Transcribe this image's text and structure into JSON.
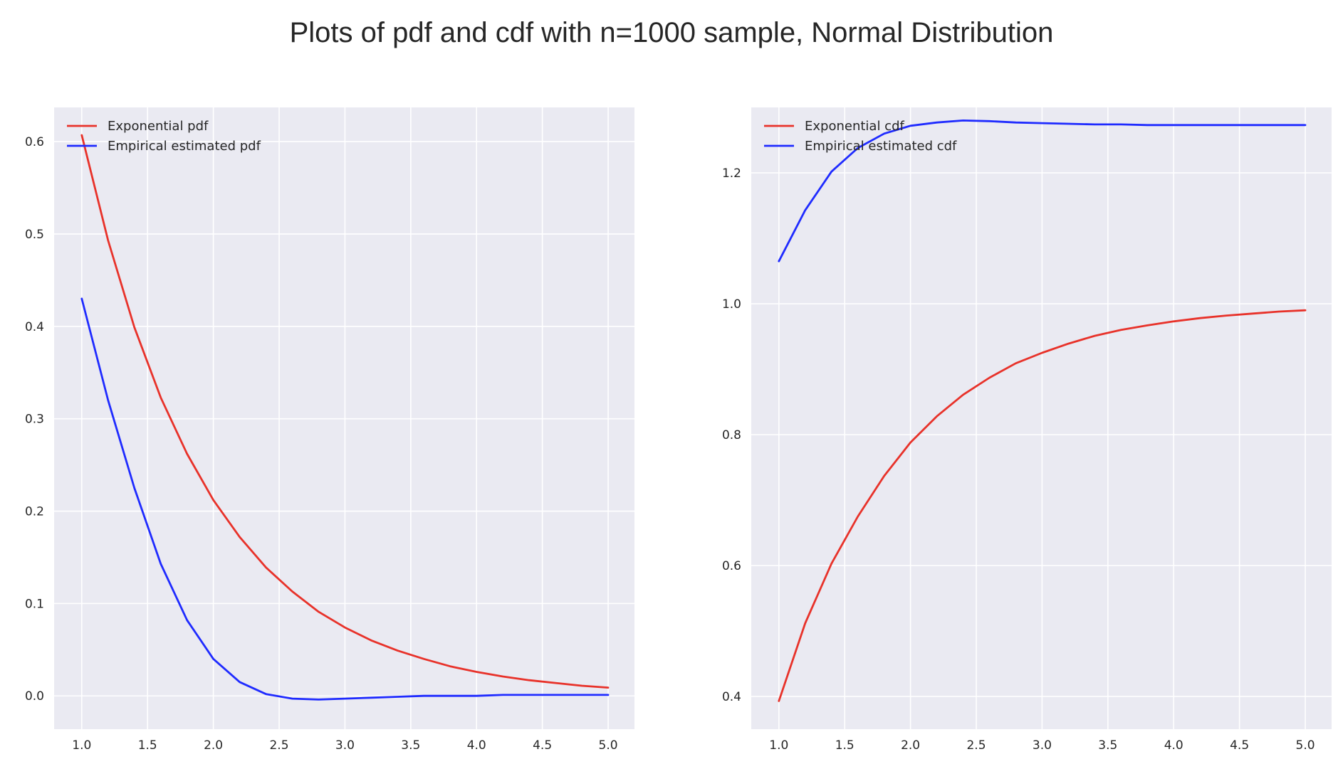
{
  "title": "Plots of pdf and cdf with n=1000 sample, Normal Distribution",
  "colors": {
    "background": "#eaeaf2",
    "grid": "#ffffff",
    "red": "#e8322a",
    "blue": "#1f2bff"
  },
  "chart_data": [
    {
      "type": "line",
      "title": "",
      "xlabel": "",
      "ylabel": "",
      "xlim": [
        0.79,
        5.2
      ],
      "ylim": [
        -0.036,
        0.637
      ],
      "xticks": [
        1.0,
        1.5,
        2.0,
        2.5,
        3.0,
        3.5,
        4.0,
        4.5,
        5.0
      ],
      "xtick_labels": [
        "1.0",
        "1.5",
        "2.0",
        "2.5",
        "3.0",
        "3.5",
        "4.0",
        "4.5",
        "5.0"
      ],
      "yticks": [
        0.0,
        0.1,
        0.2,
        0.3,
        0.4,
        0.5,
        0.6
      ],
      "ytick_labels": [
        "0.0",
        "0.1",
        "0.2",
        "0.3",
        "0.4",
        "0.5",
        "0.6"
      ],
      "grid": true,
      "legend": "upper left",
      "series": [
        {
          "name": "Exponential pdf",
          "color": "#e8322a",
          "x": [
            1.0,
            1.2,
            1.4,
            1.6,
            1.8,
            2.0,
            2.2,
            2.4,
            2.6,
            2.8,
            3.0,
            3.2,
            3.4,
            3.6,
            3.8,
            4.0,
            4.2,
            4.4,
            4.6,
            4.8,
            5.0
          ],
          "y": [
            0.607,
            0.493,
            0.399,
            0.323,
            0.262,
            0.212,
            0.172,
            0.139,
            0.113,
            0.091,
            0.074,
            0.06,
            0.049,
            0.04,
            0.032,
            0.026,
            0.021,
            0.017,
            0.014,
            0.011,
            0.009
          ]
        },
        {
          "name": "Empirical estimated pdf",
          "color": "#1f2bff",
          "x": [
            1.0,
            1.2,
            1.4,
            1.6,
            1.8,
            2.0,
            2.2,
            2.4,
            2.6,
            2.8,
            3.0,
            3.2,
            3.4,
            3.6,
            3.8,
            4.0,
            4.2,
            4.4,
            4.6,
            4.8,
            5.0
          ],
          "y": [
            0.43,
            0.32,
            0.225,
            0.143,
            0.082,
            0.04,
            0.015,
            0.002,
            -0.003,
            -0.004,
            -0.003,
            -0.002,
            -0.001,
            0.0,
            0.0,
            0.0,
            0.001,
            0.001,
            0.001,
            0.001,
            0.001
          ]
        }
      ]
    },
    {
      "type": "line",
      "title": "",
      "xlabel": "",
      "ylabel": "",
      "xlim": [
        0.79,
        5.2
      ],
      "ylim": [
        0.35,
        1.3
      ],
      "xticks": [
        1.0,
        1.5,
        2.0,
        2.5,
        3.0,
        3.5,
        4.0,
        4.5,
        5.0
      ],
      "xtick_labels": [
        "1.0",
        "1.5",
        "2.0",
        "2.5",
        "3.0",
        "3.5",
        "4.0",
        "4.5",
        "5.0"
      ],
      "yticks": [
        0.4,
        0.6,
        0.8,
        1.0,
        1.2
      ],
      "ytick_labels": [
        "0.4",
        "0.6",
        "0.8",
        "1.0",
        "1.2"
      ],
      "grid": true,
      "legend": "upper left",
      "series": [
        {
          "name": "Exponential cdf",
          "color": "#e8322a",
          "x": [
            1.0,
            1.2,
            1.4,
            1.6,
            1.8,
            2.0,
            2.2,
            2.4,
            2.6,
            2.8,
            3.0,
            3.2,
            3.4,
            3.6,
            3.8,
            4.0,
            4.2,
            4.4,
            4.6,
            4.8,
            5.0
          ],
          "y": [
            0.393,
            0.512,
            0.603,
            0.675,
            0.737,
            0.788,
            0.828,
            0.861,
            0.887,
            0.909,
            0.925,
            0.939,
            0.951,
            0.96,
            0.967,
            0.973,
            0.978,
            0.982,
            0.985,
            0.988,
            0.99
          ]
        },
        {
          "name": "Empirical estimated cdf",
          "color": "#1f2bff",
          "x": [
            1.0,
            1.2,
            1.4,
            1.6,
            1.8,
            2.0,
            2.2,
            2.4,
            2.6,
            2.8,
            3.0,
            3.2,
            3.4,
            3.6,
            3.8,
            4.0,
            4.2,
            4.4,
            4.6,
            4.8,
            5.0
          ],
          "y": [
            1.065,
            1.143,
            1.202,
            1.238,
            1.26,
            1.272,
            1.277,
            1.28,
            1.279,
            1.277,
            1.276,
            1.275,
            1.274,
            1.274,
            1.273,
            1.273,
            1.273,
            1.273,
            1.273,
            1.273,
            1.273
          ]
        }
      ]
    }
  ]
}
